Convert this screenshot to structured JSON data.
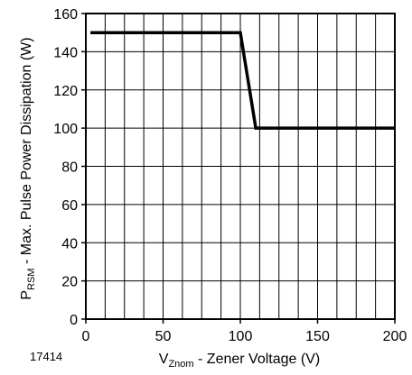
{
  "chart_data": {
    "type": "line",
    "figure_id": "17414",
    "xlabel": {
      "main": "V",
      "sub": "Znom",
      "rest": " - Zener Voltage (V)"
    },
    "ylabel": {
      "main": "P",
      "sub": "RSM",
      "rest": " - Max. Pulse Power Dissipation (W)"
    },
    "xlim": [
      0,
      200
    ],
    "ylim": [
      0,
      160
    ],
    "x_ticks": [
      0,
      50,
      100,
      150,
      200
    ],
    "y_ticks": [
      0,
      20,
      40,
      60,
      80,
      100,
      120,
      140,
      160
    ],
    "x_grid_step": 12.5,
    "y_grid_step": 20,
    "grid": true,
    "series": [
      {
        "x": [
          3,
          100,
          110,
          200
        ],
        "y": [
          150,
          150,
          100,
          100
        ]
      }
    ]
  }
}
